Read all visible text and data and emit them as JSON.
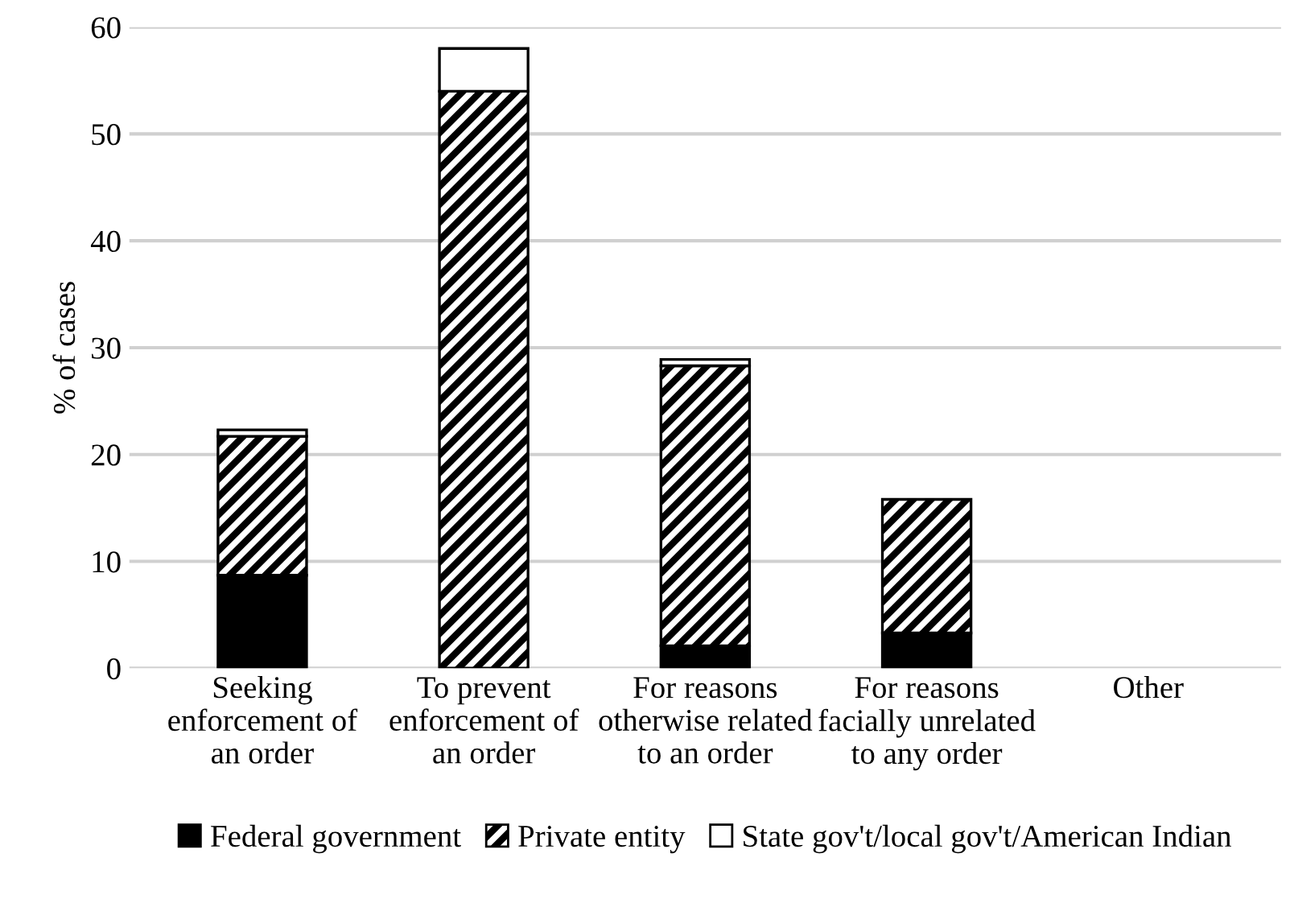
{
  "chart_data": {
    "type": "bar",
    "stacked": true,
    "ylabel": "% of cases",
    "categories": [
      "Seeking\nenforcement of\nan order",
      "To prevent\nenforcement of\nan order",
      "For reasons\notherwise related\nto an order",
      "For reasons\nfacially unrelated\nto any order",
      "Other"
    ],
    "series": [
      {
        "name": "Federal government",
        "color": "#000000",
        "values": [
          8.7,
          0,
          2.1,
          3.3,
          0
        ]
      },
      {
        "name": "Private entity",
        "color": "#000000",
        "values": [
          13.0,
          54.0,
          26.2,
          12.5,
          0
        ]
      },
      {
        "name": "State gov't/local gov't/American Indian",
        "color": "#ffffff",
        "values": [
          0.6,
          4.0,
          0.6,
          0,
          0
        ]
      }
    ],
    "ylim": [
      0,
      60
    ],
    "yticks": [
      0,
      10,
      20,
      30,
      40,
      50,
      60
    ],
    "grid": "y",
    "legend": "bottom"
  }
}
